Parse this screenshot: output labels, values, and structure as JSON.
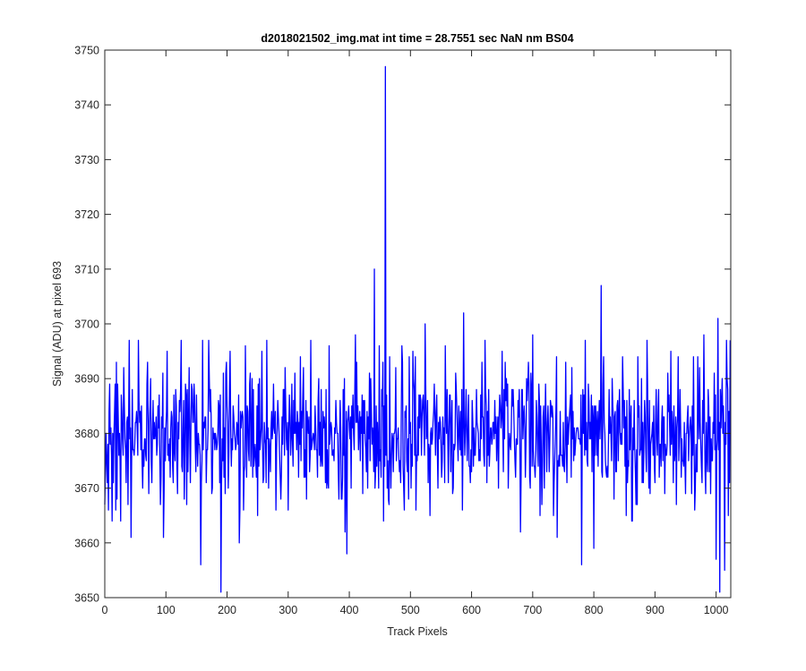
{
  "chart_data": {
    "type": "line",
    "title": "d2018021502_img.mat int time = 28.7551 sec  NaN nm BS04",
    "xlabel": "Track Pixels",
    "ylabel": "Signal (ADU) at pixel 693",
    "xlim": [
      0,
      1024
    ],
    "ylim": [
      3650,
      3750
    ],
    "xticks": [
      0,
      100,
      200,
      300,
      400,
      500,
      600,
      700,
      800,
      900,
      1000
    ],
    "yticks": [
      3650,
      3660,
      3670,
      3680,
      3690,
      3700,
      3710,
      3720,
      3730,
      3740,
      3750
    ],
    "grid": false,
    "legend": "none",
    "series": [
      {
        "color": "#0000ff",
        "n_points": 1024,
        "base_level": 3680,
        "noise_range": [
          3651,
          3702
        ],
        "anchors": [
          {
            "x": 0,
            "y": 3667
          },
          {
            "x": 3,
            "y": 3675
          },
          {
            "x": 6,
            "y": 3666
          },
          {
            "x": 10,
            "y": 3681
          },
          {
            "x": 12,
            "y": 3664
          },
          {
            "x": 17,
            "y": 3689
          },
          {
            "x": 21,
            "y": 3689
          },
          {
            "x": 26,
            "y": 3664
          },
          {
            "x": 40,
            "y": 3697
          },
          {
            "x": 43,
            "y": 3661
          },
          {
            "x": 55,
            "y": 3697
          },
          {
            "x": 70,
            "y": 3693
          },
          {
            "x": 96,
            "y": 3661
          },
          {
            "x": 102,
            "y": 3695
          },
          {
            "x": 125,
            "y": 3697
          },
          {
            "x": 130,
            "y": 3668
          },
          {
            "x": 157,
            "y": 3656
          },
          {
            "x": 160,
            "y": 3697
          },
          {
            "x": 170,
            "y": 3697
          },
          {
            "x": 190,
            "y": 3651
          },
          {
            "x": 194,
            "y": 3691
          },
          {
            "x": 205,
            "y": 3695
          },
          {
            "x": 220,
            "y": 3660
          },
          {
            "x": 230,
            "y": 3696
          },
          {
            "x": 250,
            "y": 3665
          },
          {
            "x": 257,
            "y": 3695
          },
          {
            "x": 265,
            "y": 3697
          },
          {
            "x": 280,
            "y": 3666
          },
          {
            "x": 295,
            "y": 3692
          },
          {
            "x": 300,
            "y": 3666
          },
          {
            "x": 320,
            "y": 3694
          },
          {
            "x": 330,
            "y": 3668
          },
          {
            "x": 337,
            "y": 3697
          },
          {
            "x": 348,
            "y": 3672
          },
          {
            "x": 367,
            "y": 3696
          },
          {
            "x": 375,
            "y": 3675
          },
          {
            "x": 393,
            "y": 3662
          },
          {
            "x": 396,
            "y": 3658
          },
          {
            "x": 410,
            "y": 3698
          },
          {
            "x": 420,
            "y": 3680
          },
          {
            "x": 430,
            "y": 3670
          },
          {
            "x": 438,
            "y": 3681
          },
          {
            "x": 441,
            "y": 3710
          },
          {
            "x": 444,
            "y": 3685
          },
          {
            "x": 449,
            "y": 3696
          },
          {
            "x": 452,
            "y": 3672
          },
          {
            "x": 456,
            "y": 3664
          },
          {
            "x": 459,
            "y": 3747
          },
          {
            "x": 462,
            "y": 3670
          },
          {
            "x": 466,
            "y": 3694
          },
          {
            "x": 470,
            "y": 3680
          },
          {
            "x": 476,
            "y": 3692
          },
          {
            "x": 486,
            "y": 3696
          },
          {
            "x": 490,
            "y": 3666
          },
          {
            "x": 508,
            "y": 3694
          },
          {
            "x": 517,
            "y": 3686
          },
          {
            "x": 524,
            "y": 3700
          },
          {
            "x": 532,
            "y": 3665
          },
          {
            "x": 557,
            "y": 3696
          },
          {
            "x": 570,
            "y": 3670
          },
          {
            "x": 585,
            "y": 3666
          },
          {
            "x": 587,
            "y": 3702
          },
          {
            "x": 600,
            "y": 3673
          },
          {
            "x": 622,
            "y": 3697
          },
          {
            "x": 650,
            "y": 3695
          },
          {
            "x": 660,
            "y": 3670
          },
          {
            "x": 680,
            "y": 3662
          },
          {
            "x": 700,
            "y": 3698
          },
          {
            "x": 712,
            "y": 3665
          },
          {
            "x": 740,
            "y": 3661
          },
          {
            "x": 780,
            "y": 3656
          },
          {
            "x": 786,
            "y": 3697
          },
          {
            "x": 800,
            "y": 3659
          },
          {
            "x": 812,
            "y": 3707
          },
          {
            "x": 830,
            "y": 3690
          },
          {
            "x": 862,
            "y": 3664
          },
          {
            "x": 887,
            "y": 3697
          },
          {
            "x": 926,
            "y": 3695
          },
          {
            "x": 935,
            "y": 3667
          },
          {
            "x": 960,
            "y": 3669
          },
          {
            "x": 970,
            "y": 3694
          },
          {
            "x": 980,
            "y": 3698
          },
          {
            "x": 991,
            "y": 3669
          },
          {
            "x": 1000,
            "y": 3657
          },
          {
            "x": 1003,
            "y": 3701
          },
          {
            "x": 1006,
            "y": 3651
          },
          {
            "x": 1010,
            "y": 3690
          },
          {
            "x": 1014,
            "y": 3655
          },
          {
            "x": 1017,
            "y": 3697
          },
          {
            "x": 1020,
            "y": 3665
          },
          {
            "x": 1023,
            "y": 3697
          }
        ]
      }
    ]
  }
}
